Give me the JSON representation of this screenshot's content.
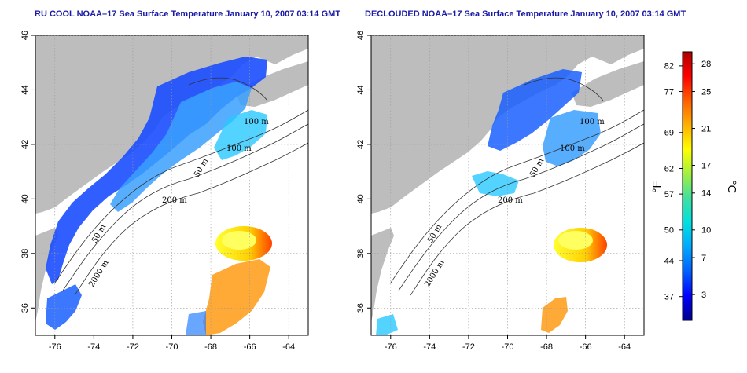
{
  "panels": [
    {
      "id": "left",
      "title": "RU COOL NOAA–17 Sea Surface Temperature January 10, 2007 03:14 GMT"
    },
    {
      "id": "right",
      "title": "DECLOUDED NOAA–17 Sea Surface Temperature January 10, 2007 03:14 GMT"
    }
  ],
  "map_axes": {
    "lon_ticks": [
      "-76",
      "-74",
      "-72",
      "-70",
      "-68",
      "-66",
      "-64"
    ],
    "lat_ticks": [
      "36",
      "38",
      "40",
      "42",
      "44",
      "46"
    ],
    "contour_labels": [
      "100 m",
      "100 m",
      "50 m",
      "200 m",
      "50 m",
      "2000 m"
    ],
    "grid": "dotted"
  },
  "colorbar": {
    "fahrenheit_ticks": [
      "82",
      "77",
      "69",
      "62",
      "57",
      "50",
      "44",
      "37"
    ],
    "celsius_ticks": [
      "28",
      "25",
      "21",
      "17",
      "14",
      "10",
      "7",
      "3"
    ],
    "fahrenheit_label": "°F",
    "celsius_label": "°C",
    "colors": [
      "#00008b",
      "#0000ff",
      "#0060ff",
      "#00a8ff",
      "#00e0e0",
      "#40e0a0",
      "#a0f040",
      "#ffff00",
      "#ffb000",
      "#ff6000",
      "#ff0000",
      "#b00000"
    ]
  },
  "colors": {
    "land": "#bdbdbd",
    "water_nodata": "#ffffff"
  }
}
